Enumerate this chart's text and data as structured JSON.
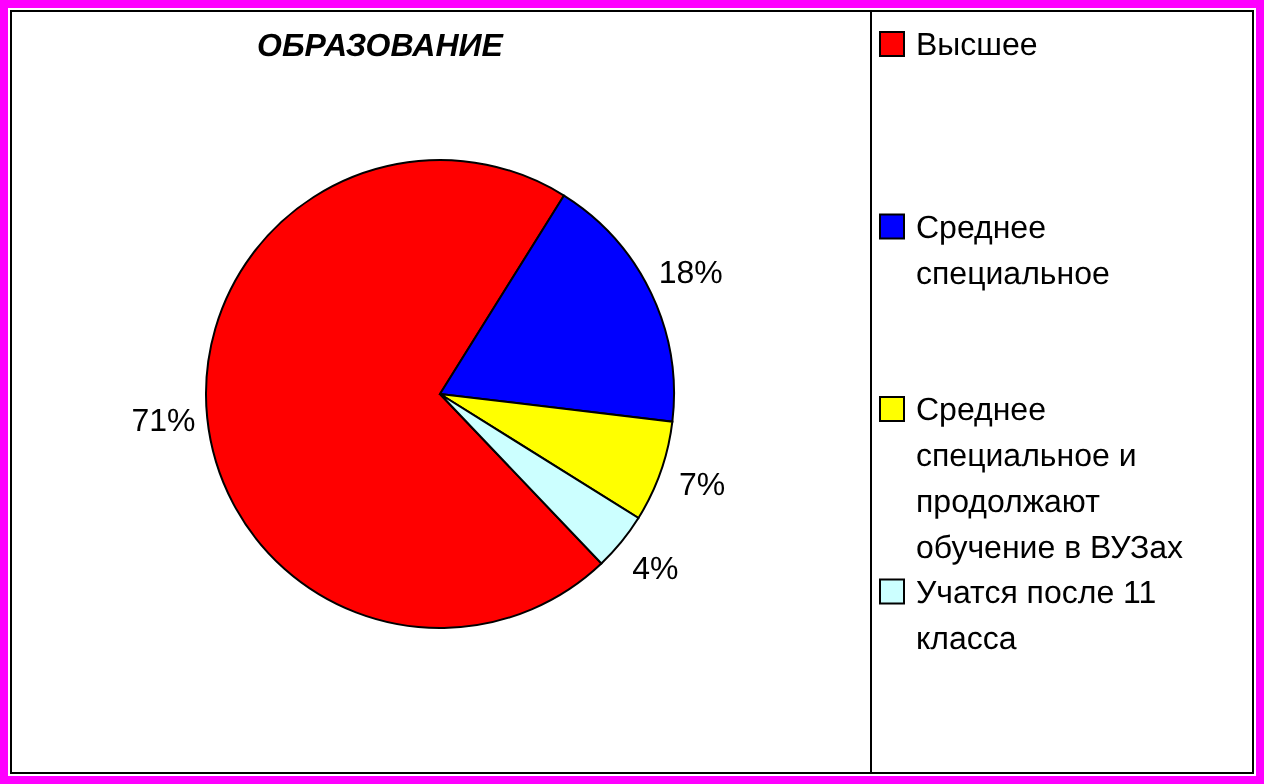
{
  "chart_data": {
    "type": "pie",
    "title": "ОБРАЗОВАНИЕ",
    "categories": [
      "Высшее",
      "Среднее специальное",
      "Среднее специальное и продолжают обучение в ВУЗах",
      "Учатся после 11 класса"
    ],
    "values": [
      71,
      18,
      7,
      4
    ],
    "colors": [
      "#ff0000",
      "#0000ff",
      "#ffff00",
      "#ccffff"
    ],
    "value_labels": [
      "71%",
      "18%",
      "7%",
      "4%"
    ],
    "legend": "right"
  }
}
